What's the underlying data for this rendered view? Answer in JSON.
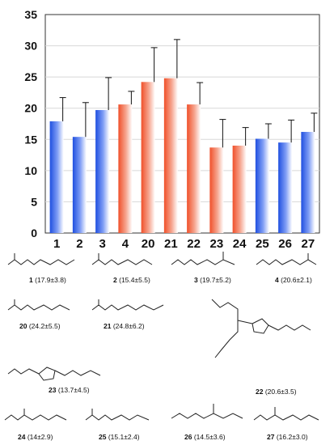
{
  "chart_data": {
    "type": "bar",
    "categories": [
      "1",
      "2",
      "3",
      "4",
      "20",
      "21",
      "22",
      "23",
      "24",
      "25",
      "26",
      "27"
    ],
    "values": [
      17.9,
      15.4,
      19.7,
      20.6,
      24.2,
      24.8,
      20.6,
      13.7,
      14.0,
      15.1,
      14.5,
      16.2
    ],
    "errors": [
      3.8,
      5.5,
      5.2,
      2.1,
      5.5,
      6.2,
      3.5,
      4.5,
      2.9,
      2.4,
      3.6,
      3.0
    ],
    "bar_colors": [
      "#1f4fe0",
      "#1f4fe0",
      "#1f4fe0",
      "#f0502a",
      "#f0502a",
      "#f0502a",
      "#f0502a",
      "#f0502a",
      "#f0502a",
      "#1f4fe0",
      "#1f4fe0",
      "#1f4fe0"
    ],
    "ylim": [
      0,
      35
    ],
    "yticks": [
      0,
      5,
      10,
      15,
      20,
      25,
      30,
      35
    ],
    "grid": "horizontal",
    "title": "",
    "xlabel": "",
    "ylabel": ""
  },
  "compounds": [
    {
      "num": "1",
      "val": "(17.9±3.8)"
    },
    {
      "num": "2",
      "val": "(15.4±5.5)"
    },
    {
      "num": "3",
      "val": "(19.7±5.2)"
    },
    {
      "num": "4",
      "val": "(20.6±2.1)"
    },
    {
      "num": "20",
      "val": "(24.2±5.5)"
    },
    {
      "num": "21",
      "val": "(24.8±6.2)"
    },
    {
      "num": "22",
      "val": "(20.6±3.5)"
    },
    {
      "num": "23",
      "val": "(13.7±4.5)"
    },
    {
      "num": "24",
      "val": "(14±2.9)"
    },
    {
      "num": "25",
      "val": "(15.1±2.4)"
    },
    {
      "num": "26",
      "val": "(14.5±3.6)"
    },
    {
      "num": "27",
      "val": "(16.2±3.0)"
    }
  ],
  "colors": {
    "blue": "#1f4fe0",
    "orange": "#f0502a",
    "axis": "#333333",
    "grid": "#d8d8d8"
  }
}
